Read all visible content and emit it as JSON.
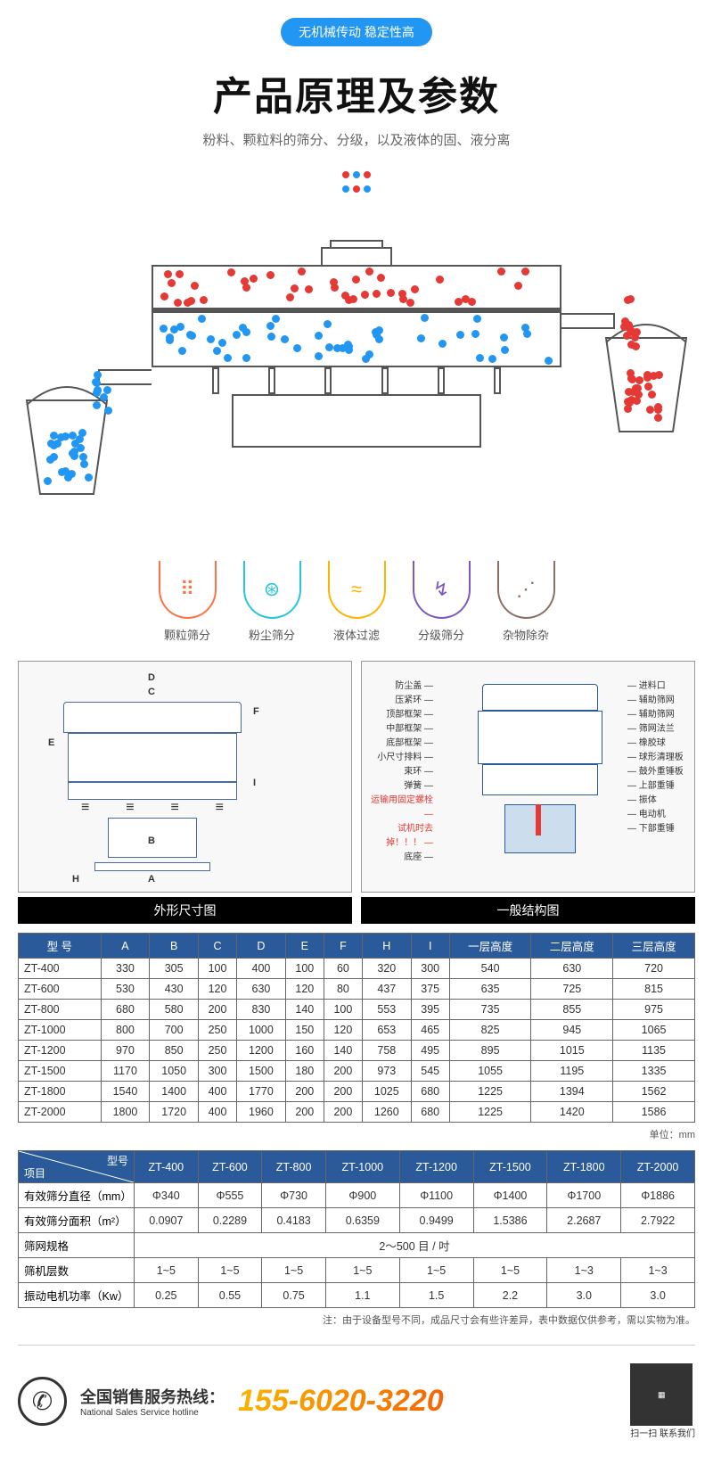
{
  "header": {
    "badge": "无机械传动 稳定性高",
    "title": "产品原理及参数",
    "subtitle": "粉料、颗粒料的筛分、分级，以及液体的固、液分离"
  },
  "colors": {
    "red": "#e53935",
    "blue": "#2196f3",
    "badge_bg": "#2196f3",
    "th_bg": "#2a5a9a",
    "outline": "#555555"
  },
  "features": [
    {
      "name": "particle",
      "label": "颗粒筛分",
      "color": "#ff7043",
      "icon": "⠿"
    },
    {
      "name": "dust",
      "label": "粉尘筛分",
      "color": "#26c6da",
      "icon": "⊛"
    },
    {
      "name": "liquid",
      "label": "液体过滤",
      "color": "#ffb300",
      "icon": "≈"
    },
    {
      "name": "grade",
      "label": "分级筛分",
      "color": "#7e57c2",
      "icon": "↯"
    },
    {
      "name": "debris",
      "label": "杂物除杂",
      "color": "#8d6e63",
      "icon": "⋰"
    }
  ],
  "tech_diagrams": {
    "left_title": "外形尺寸图",
    "right_title": "一般结构图",
    "left_dims": [
      "A",
      "B",
      "C",
      "D",
      "E",
      "F",
      "H",
      "I"
    ],
    "right_labels_left": [
      "防尘盖",
      "压紧环",
      "顶部框架",
      "中部框架",
      "底部框架",
      "小尺寸排料",
      "束环",
      "弹簧",
      "运输用固定螺栓",
      "试机时去掉！！！",
      "底座"
    ],
    "right_labels_right": [
      "进料口",
      "辅助筛网",
      "辅助筛网",
      "筛网法兰",
      "橡胶球",
      "球形清理板",
      "鼓外重锤板",
      "上部重锤",
      "振体",
      "电动机",
      "下部重锤"
    ]
  },
  "table1": {
    "headers": [
      "型 号",
      "A",
      "B",
      "C",
      "D",
      "E",
      "F",
      "H",
      "I",
      "一层高度",
      "二层高度",
      "三层高度"
    ],
    "rows": [
      [
        "ZT-400",
        "330",
        "305",
        "100",
        "400",
        "100",
        "60",
        "320",
        "300",
        "540",
        "630",
        "720"
      ],
      [
        "ZT-600",
        "530",
        "430",
        "120",
        "630",
        "120",
        "80",
        "437",
        "375",
        "635",
        "725",
        "815"
      ],
      [
        "ZT-800",
        "680",
        "580",
        "200",
        "830",
        "140",
        "100",
        "553",
        "395",
        "735",
        "855",
        "975"
      ],
      [
        "ZT-1000",
        "800",
        "700",
        "250",
        "1000",
        "150",
        "120",
        "653",
        "465",
        "825",
        "945",
        "1065"
      ],
      [
        "ZT-1200",
        "970",
        "850",
        "250",
        "1200",
        "160",
        "140",
        "758",
        "495",
        "895",
        "1015",
        "1135"
      ],
      [
        "ZT-1500",
        "1170",
        "1050",
        "300",
        "1500",
        "180",
        "200",
        "973",
        "545",
        "1055",
        "1195",
        "1335"
      ],
      [
        "ZT-1800",
        "1540",
        "1400",
        "400",
        "1770",
        "200",
        "200",
        "1025",
        "680",
        "1225",
        "1394",
        "1562"
      ],
      [
        "ZT-2000",
        "1800",
        "1720",
        "400",
        "1960",
        "200",
        "200",
        "1260",
        "680",
        "1225",
        "1420",
        "1586"
      ]
    ],
    "unit": "单位：mm"
  },
  "table2": {
    "corner_top": "型号",
    "corner_bottom": "项目",
    "cols": [
      "ZT-400",
      "ZT-600",
      "ZT-800",
      "ZT-1000",
      "ZT-1200",
      "ZT-1500",
      "ZT-1800",
      "ZT-2000"
    ],
    "rows": [
      {
        "h": "有效筛分直径（mm）",
        "v": [
          "Φ340",
          "Φ555",
          "Φ730",
          "Φ900",
          "Φ1100",
          "Φ1400",
          "Φ1700",
          "Φ1886"
        ]
      },
      {
        "h": "有效筛分面积（m²）",
        "v": [
          "0.0907",
          "0.2289",
          "0.4183",
          "0.6359",
          "0.9499",
          "1.5386",
          "2.2687",
          "2.7922"
        ]
      },
      {
        "h": "筛网规格",
        "merged": "2～500 目 / 吋"
      },
      {
        "h": "筛机层数",
        "v": [
          "1~5",
          "1~5",
          "1~5",
          "1~5",
          "1~5",
          "1~5",
          "1~3",
          "1~3"
        ]
      },
      {
        "h": "振动电机功率（Kw）",
        "v": [
          "0.25",
          "0.55",
          "0.75",
          "1.1",
          "1.5",
          "2.2",
          "3.0",
          "3.0"
        ]
      }
    ],
    "note": "注：由于设备型号不同，成品尺寸会有些许差异，表中数据仅供参考，需以实物为准。"
  },
  "hotline": {
    "title": "全国销售服务热线：",
    "sub": "National Sales Service hotline",
    "number": "155-6020-3220",
    "qr_label": "扫一扫 联系我们"
  }
}
